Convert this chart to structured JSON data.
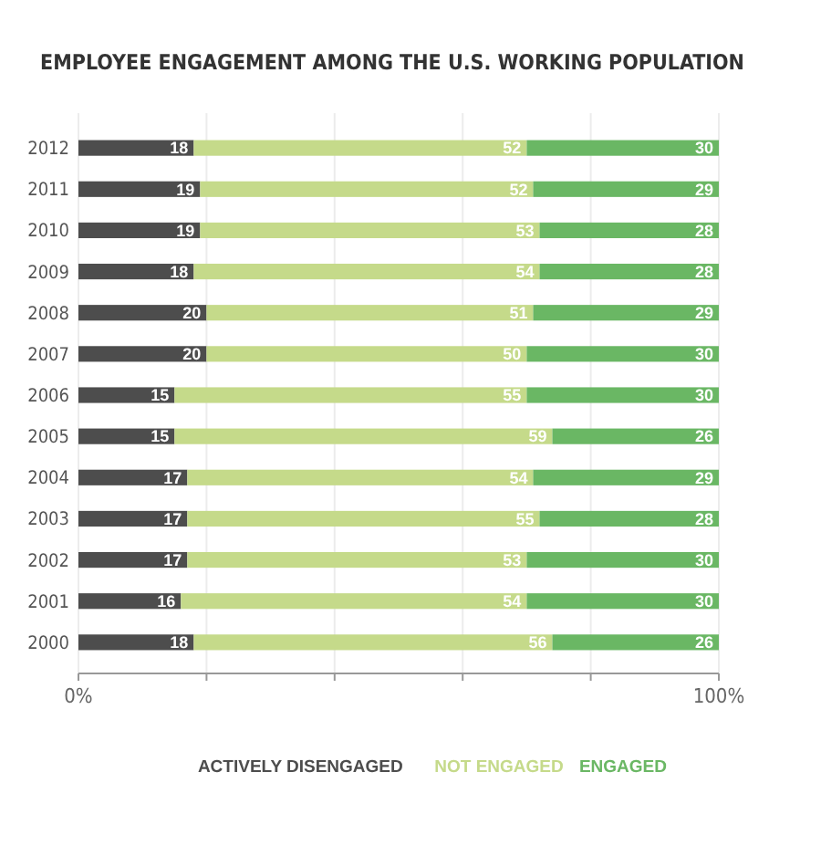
{
  "chart_data": {
    "type": "bar",
    "title": "EMPLOYEE ENGAGEMENT AMONG THE U.S. WORKING POPULATION",
    "orientation": "horizontal",
    "stacked": true,
    "data_labels": true,
    "grid": "x",
    "legend": "bottom",
    "categories": [
      "2012",
      "2011",
      "2010",
      "2009",
      "2008",
      "2007",
      "2006",
      "2005",
      "2004",
      "2003",
      "2002",
      "2001",
      "2000"
    ],
    "xlim": [
      0,
      100
    ],
    "xticks": [
      {
        "value": 0,
        "label": "0%"
      },
      {
        "value": 20,
        "label": null
      },
      {
        "value": 40,
        "label": null
      },
      {
        "value": 60,
        "label": null
      },
      {
        "value": 80,
        "label": null
      },
      {
        "value": 100,
        "label": "100%"
      }
    ],
    "series": [
      {
        "name": "ACTIVELY DISENGAGED",
        "color": "#4d4d4d",
        "values": [
          18,
          19,
          19,
          18,
          20,
          20,
          15,
          15,
          17,
          17,
          17,
          16,
          18
        ]
      },
      {
        "name": "NOT ENGAGED",
        "color": "#c5da8a",
        "values": [
          52,
          52,
          53,
          54,
          51,
          50,
          55,
          59,
          54,
          55,
          53,
          54,
          56
        ]
      },
      {
        "name": "ENGAGED",
        "color": "#6ab764",
        "values": [
          30,
          29,
          28,
          28,
          29,
          30,
          30,
          26,
          29,
          28,
          30,
          30,
          26
        ]
      }
    ]
  }
}
